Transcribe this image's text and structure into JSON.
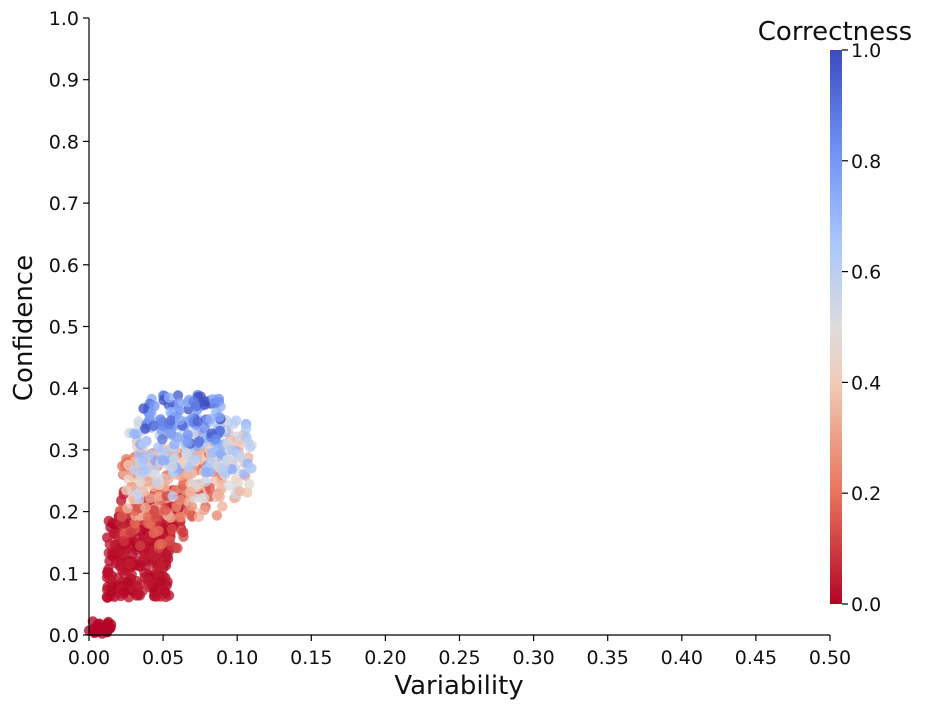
{
  "chart_data": {
    "type": "scatter",
    "xlabel": "Variability",
    "ylabel": "Confidence",
    "xlim": [
      0.0,
      0.5
    ],
    "ylim": [
      0.0,
      1.0
    ],
    "xticks": [
      "0.00",
      "0.05",
      "0.10",
      "0.15",
      "0.20",
      "0.25",
      "0.30",
      "0.35",
      "0.40",
      "0.45",
      "0.50"
    ],
    "yticks": [
      "0.0",
      "0.1",
      "0.2",
      "0.3",
      "0.4",
      "0.5",
      "0.6",
      "0.7",
      "0.8",
      "0.9",
      "1.0"
    ],
    "colorbar": {
      "title": "Correctness",
      "range": [
        0.0,
        1.0
      ],
      "ticks": [
        "0.0",
        "0.2",
        "0.4",
        "0.6",
        "0.8",
        "1.0"
      ],
      "colormap": "coolwarm-reversed",
      "colors": [
        "#b40426",
        "#e7745b",
        "#f2cbb7",
        "#dddcdc",
        "#aac7fd",
        "#6f92f3",
        "#3b4cc0"
      ]
    },
    "grid": false,
    "clusters": [
      {
        "x": [
          0.0,
          0.015
        ],
        "y": [
          0.0,
          0.025
        ],
        "c": [
          0.0,
          0.0
        ],
        "n": 24
      },
      {
        "x": [
          0.012,
          0.055
        ],
        "y": [
          0.06,
          0.19
        ],
        "c": [
          0.0,
          0.05
        ],
        "n": 260
      },
      {
        "x": [
          0.02,
          0.065
        ],
        "y": [
          0.14,
          0.24
        ],
        "c": [
          0.0,
          0.2
        ],
        "n": 120
      },
      {
        "x": [
          0.022,
          0.09
        ],
        "y": [
          0.19,
          0.3
        ],
        "c": [
          0.1,
          0.4
        ],
        "n": 150
      },
      {
        "x": [
          0.025,
          0.11
        ],
        "y": [
          0.22,
          0.33
        ],
        "c": [
          0.3,
          0.6
        ],
        "n": 130
      },
      {
        "x": [
          0.03,
          0.11
        ],
        "y": [
          0.26,
          0.35
        ],
        "c": [
          0.5,
          0.75
        ],
        "n": 120
      },
      {
        "x": [
          0.035,
          0.09
        ],
        "y": [
          0.31,
          0.39
        ],
        "c": [
          0.7,
          1.0
        ],
        "n": 90
      }
    ]
  }
}
